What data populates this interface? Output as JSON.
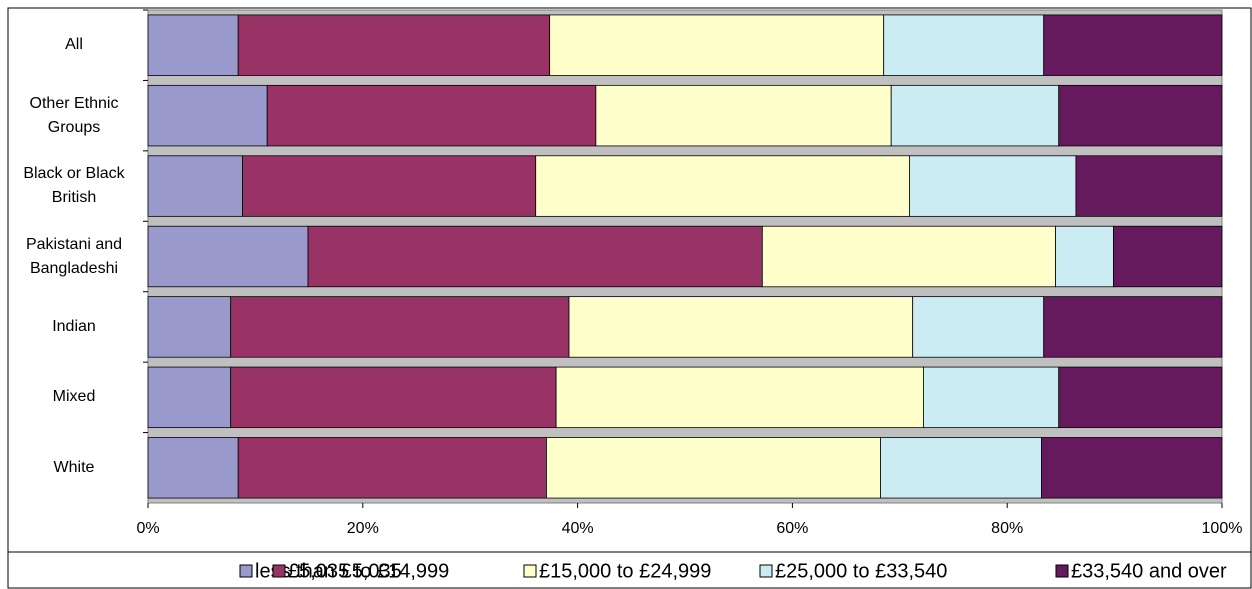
{
  "chart_data": {
    "type": "stacked-barh",
    "categories": [
      "All",
      "Other Ethnic Groups",
      "Black or Black British",
      "Pakistani and Bangladeshi",
      "Indian",
      "Mixed",
      "White"
    ],
    "series": [
      {
        "name": "less than £5,035",
        "color": "#9999cc",
        "values": [
          8.4,
          11.1,
          8.8,
          14.9,
          7.7,
          7.7,
          8.4
        ]
      },
      {
        "name": "£5,035 to £14,999",
        "color": "#993366",
        "values": [
          29.0,
          30.6,
          27.3,
          42.3,
          31.5,
          30.3,
          28.7
        ]
      },
      {
        "name": "£15,000 to £24,999",
        "color": "#ffffcc",
        "values": [
          31.1,
          27.5,
          34.8,
          27.3,
          32.0,
          34.2,
          31.1
        ]
      },
      {
        "name": "£25,000 to £33,540",
        "color": "#ccecf4",
        "values": [
          14.9,
          15.6,
          15.5,
          5.4,
          12.2,
          12.6,
          15.0
        ]
      },
      {
        "name": "£33,540 and over",
        "color": "#661a5e",
        "values": [
          16.6,
          15.2,
          13.6,
          10.1,
          16.6,
          15.2,
          16.8
        ]
      }
    ],
    "xlim": [
      0,
      100
    ],
    "xticks": [
      {
        "value": 0,
        "label": "0%"
      },
      {
        "value": 20,
        "label": "20%"
      },
      {
        "value": 40,
        "label": "40%"
      },
      {
        "value": 60,
        "label": "60%"
      },
      {
        "value": 80,
        "label": "80%"
      },
      {
        "value": 100,
        "label": "100%"
      }
    ],
    "legend": "bottom"
  }
}
